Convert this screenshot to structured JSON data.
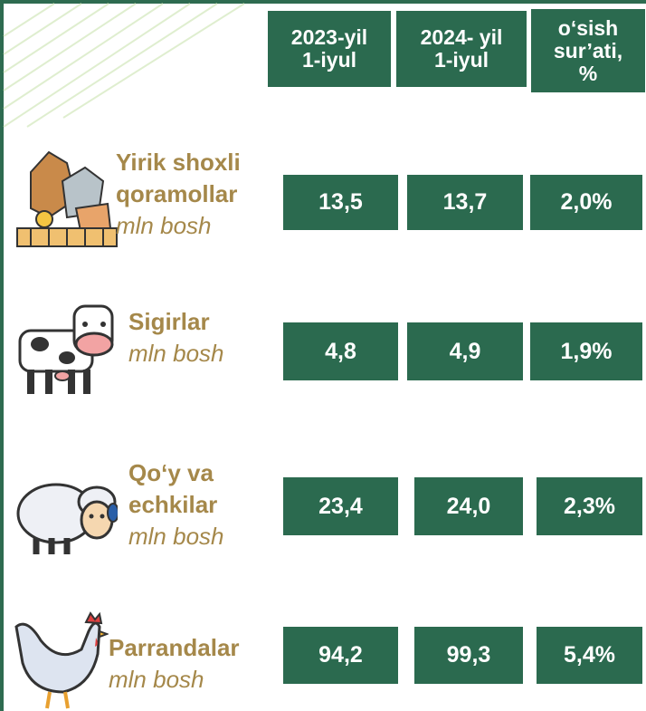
{
  "table": {
    "headers": [
      [
        "2023-yil",
        "1-iyul"
      ],
      [
        "2024- yil",
        "1-iyul"
      ],
      [
        "o‘sish",
        "sur’ati,",
        "%"
      ]
    ],
    "rows": [
      {
        "name": [
          "Yirik shoxli",
          "qoramollar"
        ],
        "unit": "mln bosh",
        "values": [
          "13,5",
          "13,7",
          "2,0%"
        ]
      },
      {
        "name": [
          "Sigirlar"
        ],
        "unit": "mln bosh",
        "values": [
          "4,8",
          "4,9",
          "1,9%"
        ]
      },
      {
        "name": [
          "Qo‘y va",
          "echkilar"
        ],
        "unit": "mln bosh",
        "values": [
          "23,4",
          "24,0",
          "2,3%"
        ]
      },
      {
        "name": [
          "Parrandalar"
        ],
        "unit": "mln bosh",
        "values": [
          "94,2",
          "99,3",
          "5,4%"
        ]
      }
    ]
  }
}
